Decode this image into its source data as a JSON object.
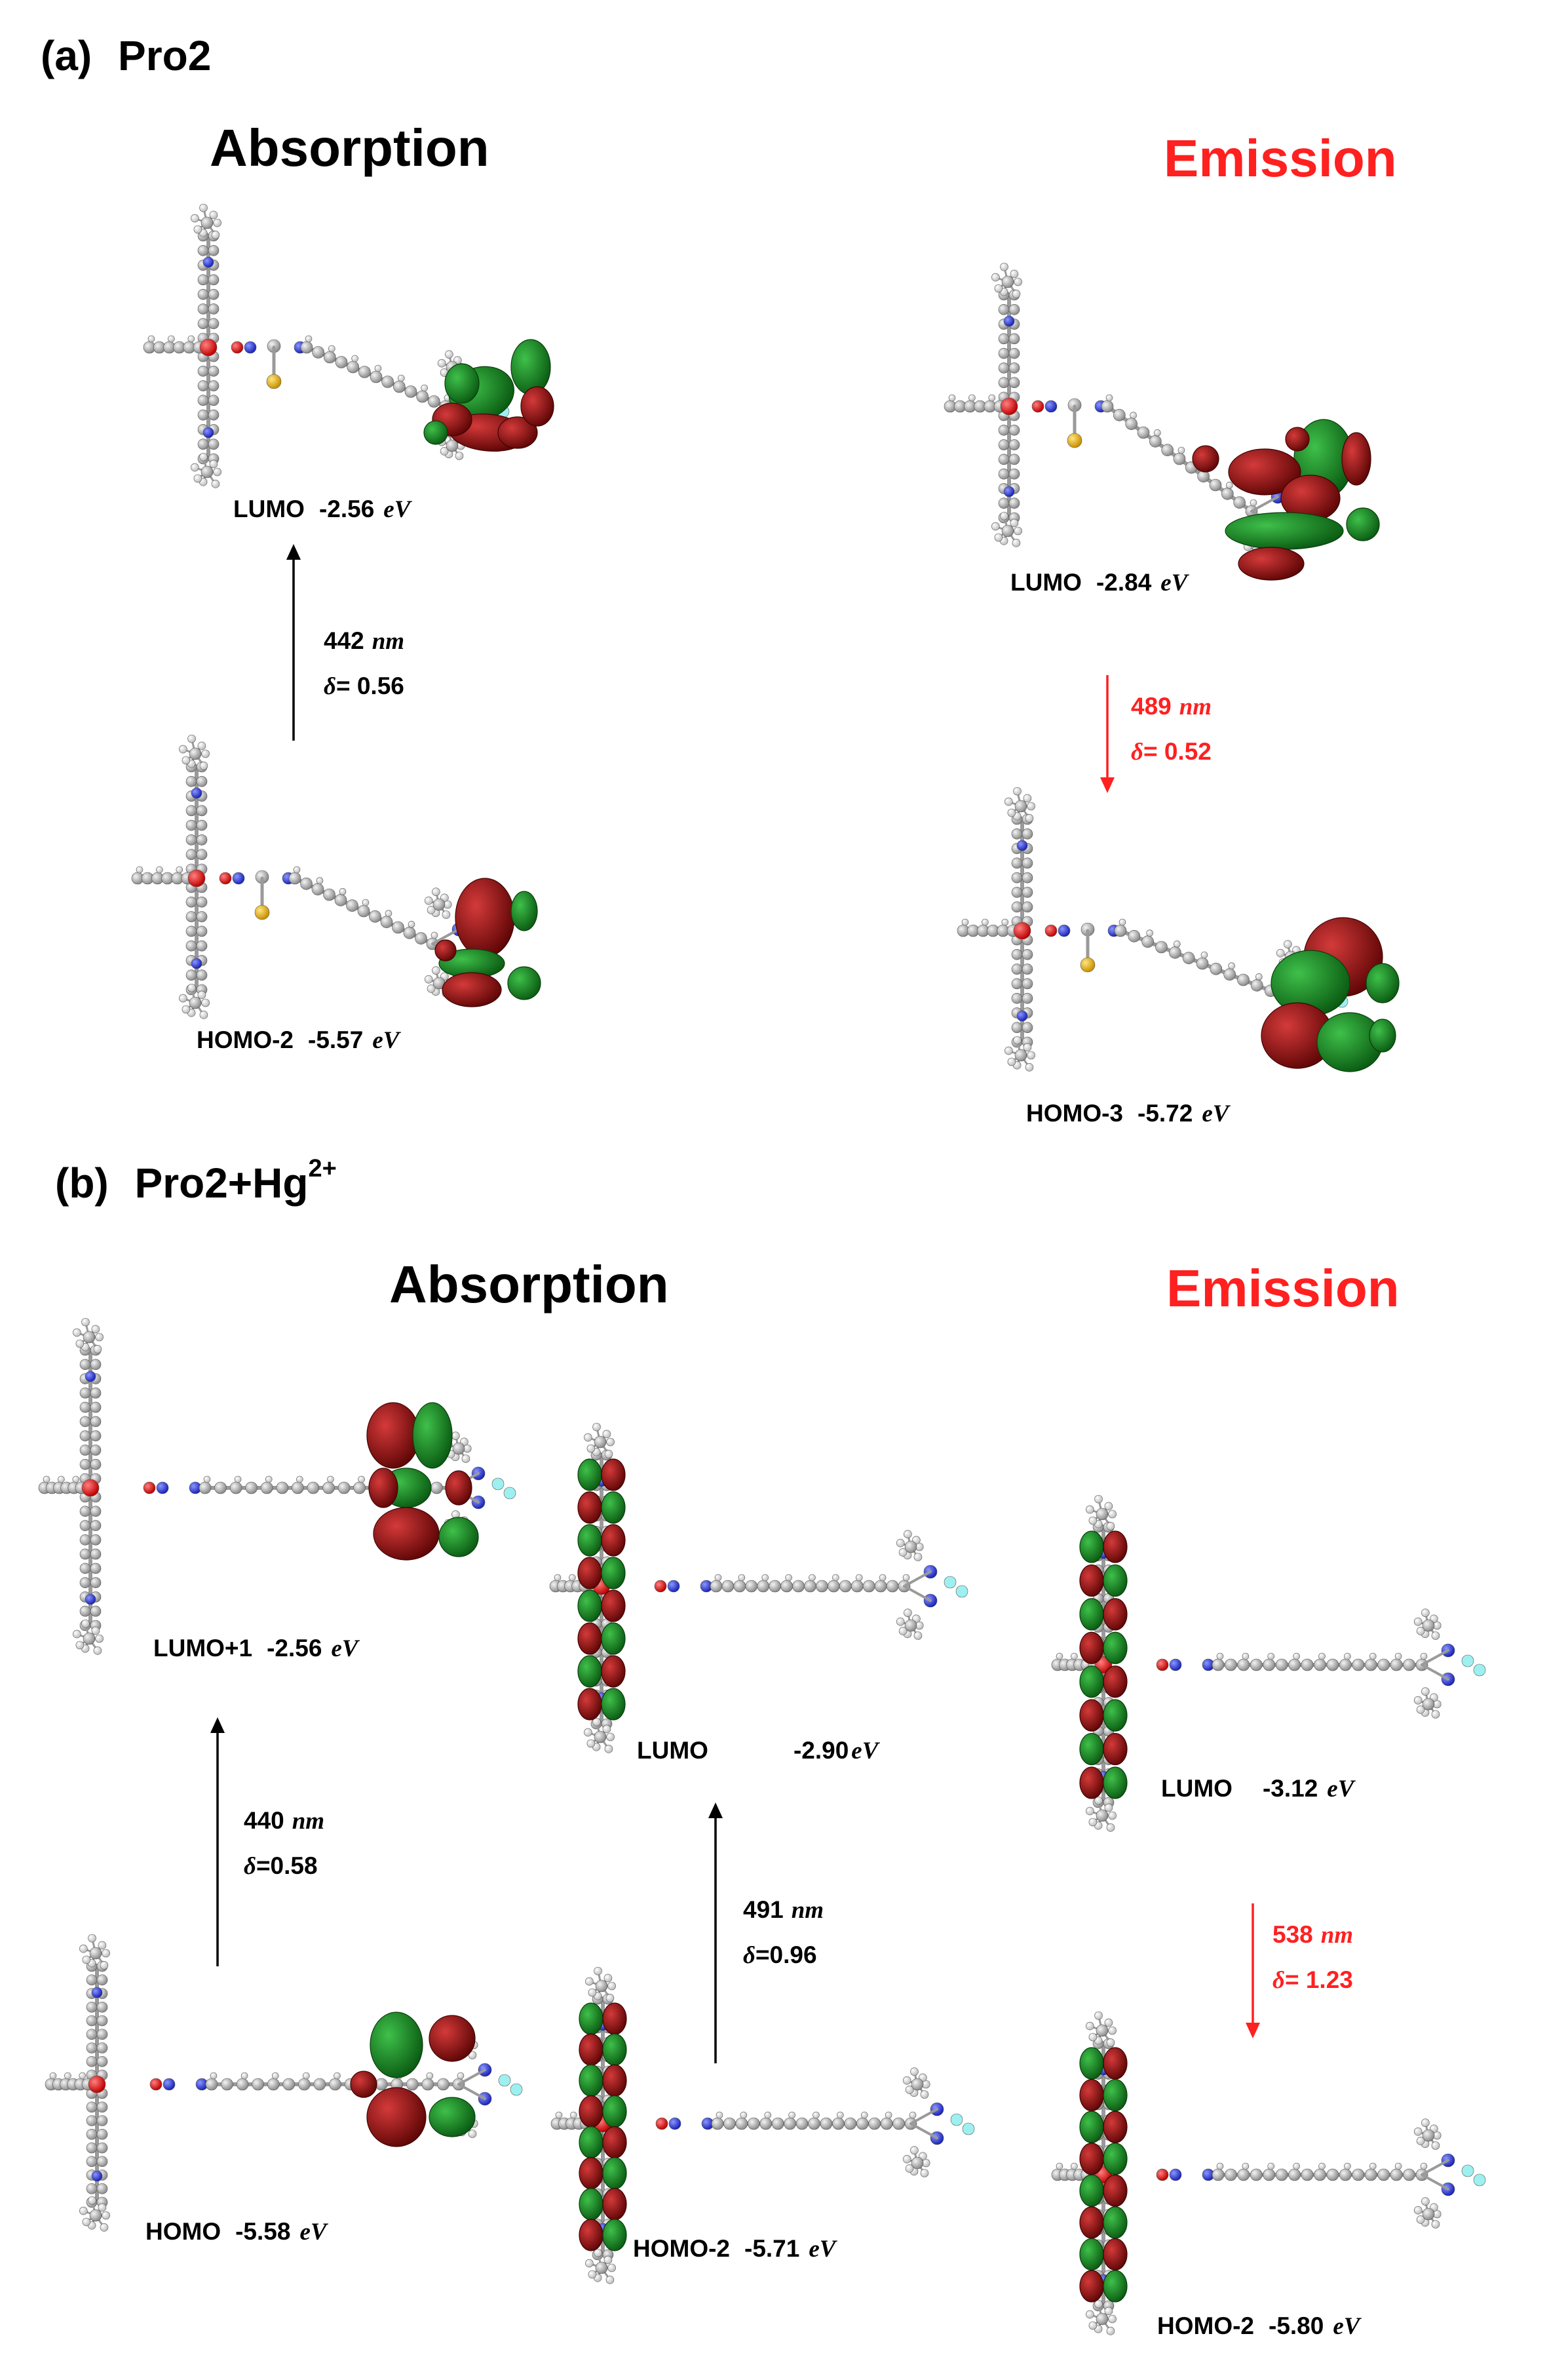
{
  "panel_a": {
    "letter": "(a)",
    "name": "Pro2",
    "absorption": {
      "heading": "Absorption",
      "upper": {
        "label": "LUMO",
        "energy": "-2.56",
        "unit": "eV"
      },
      "lower": {
        "label": "HOMO-2",
        "energy": "-5.57",
        "unit": "eV"
      },
      "transition": {
        "wavelength": "442",
        "wl_unit": "nm",
        "delta_symbol": "δ",
        "delta": "= 0.56"
      }
    },
    "emission": {
      "heading": "Emission",
      "upper": {
        "label": "LUMO",
        "energy": "-2.84",
        "unit": "eV"
      },
      "lower": {
        "label": "HOMO-3",
        "energy": "-5.72",
        "unit": "eV"
      },
      "transition": {
        "wavelength": "489",
        "wl_unit": "nm",
        "delta_symbol": "δ",
        "delta": "= 0.52"
      }
    }
  },
  "panel_b": {
    "letter": "(b)",
    "name": "Pro2+Hg",
    "superscript": "2+",
    "absorption": {
      "heading": "Absorption",
      "t1": {
        "upper": {
          "label": "LUMO+1",
          "energy": "-2.56",
          "unit": "eV"
        },
        "lower": {
          "label": "HOMO",
          "energy": "-5.58",
          "unit": "eV"
        },
        "transition": {
          "wavelength": "440",
          "wl_unit": "nm",
          "delta_symbol": "δ",
          "delta": "=0.58"
        }
      },
      "t2": {
        "upper": {
          "label": "LUMO",
          "energy": "-2.90",
          "unit": "eV"
        },
        "lower": {
          "label": "HOMO-2",
          "energy": "-5.71",
          "unit": "eV"
        },
        "transition": {
          "wavelength": "491",
          "wl_unit": "nm",
          "delta_symbol": "δ",
          "delta": "=0.96"
        }
      }
    },
    "emission": {
      "heading": "Emission",
      "upper": {
        "label": "LUMO",
        "energy": "-3.12",
        "unit": "eV"
      },
      "lower": {
        "label": "HOMO-2",
        "energy": "-5.80",
        "unit": "eV"
      },
      "transition": {
        "wavelength": "538",
        "wl_unit": "nm",
        "delta_symbol": "δ",
        "delta": "= 1.23"
      }
    }
  },
  "colors": {
    "absorption_arrow": "#000000",
    "emission_arrow": "#ff2020",
    "orbital_positive": "#0f7a1a",
    "orbital_negative": "#8a0b0b",
    "carbon": "#9a9a9a",
    "hydrogen": "#e6e6e6",
    "nitrogen": "#1f2fd0",
    "oxygen": "#e01010",
    "sulfur": "#e0b000",
    "fluorine": "#9ef0f0"
  }
}
